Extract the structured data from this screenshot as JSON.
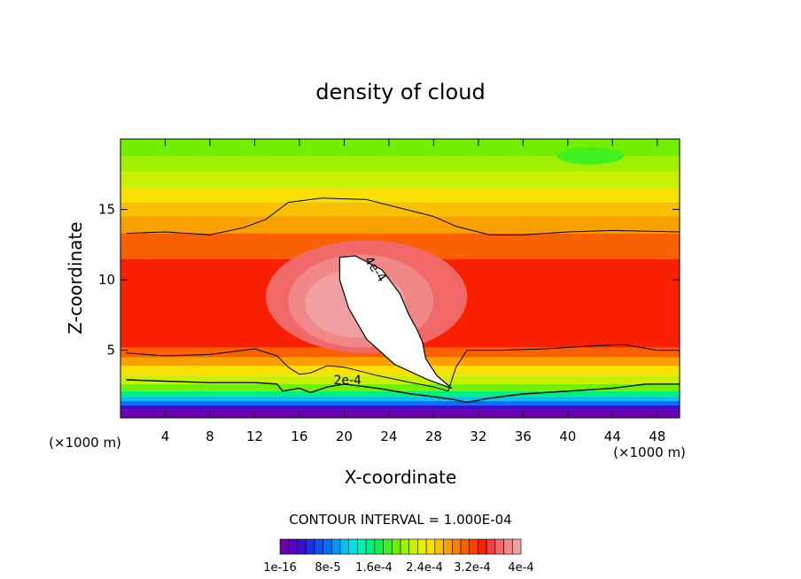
{
  "chart_data": {
    "type": "heatmap",
    "title": "density of cloud",
    "xlabel": "X-coordinate",
    "ylabel": "Z-coordinate",
    "x_unit_left": "(×1000 m)",
    "x_unit_right": "(×1000 m)",
    "xlim": [
      0,
      50
    ],
    "ylim": [
      0.2,
      20
    ],
    "x_ticks": [
      4,
      8,
      12,
      16,
      20,
      24,
      28,
      32,
      36,
      40,
      44,
      48
    ],
    "y_ticks": [
      5,
      10,
      15
    ],
    "contour_interval_label": "CONTOUR INTERVAL = 1.000E-04",
    "contour_labels": [
      {
        "text": "4e-4",
        "x": 22.5,
        "z": 10.6
      },
      {
        "text": "2e-4",
        "x": 20.3,
        "z": 2.6
      }
    ],
    "colorbar": {
      "levels": 28,
      "tick_labels": [
        "1e-16",
        "8e-5",
        "1.6e-4",
        "2.4e-4",
        "3.2e-4",
        "4e-4"
      ],
      "colors": [
        "#6a00b0",
        "#5800c8",
        "#3a10d0",
        "#2030e0",
        "#1050f0",
        "#0070f8",
        "#0098f8",
        "#00c0f0",
        "#00e0e0",
        "#00f0b0",
        "#00f080",
        "#10f050",
        "#40f020",
        "#70f000",
        "#a0f000",
        "#c8f000",
        "#e8f000",
        "#f8e000",
        "#f8c000",
        "#f8a000",
        "#f88000",
        "#f86000",
        "#f84000",
        "#f82000",
        "#f04040",
        "#f06868",
        "#f08888",
        "#f0a0a0"
      ]
    },
    "bands": [
      {
        "z": 0.2,
        "color": "#6a00b0"
      },
      {
        "z": 0.8,
        "color": "#3a10d0"
      },
      {
        "z": 1.1,
        "color": "#0070f8"
      },
      {
        "z": 1.4,
        "color": "#00c0f0"
      },
      {
        "z": 1.7,
        "color": "#00f080"
      },
      {
        "z": 2.1,
        "color": "#70f000"
      },
      {
        "z": 2.6,
        "color": "#c8f000"
      },
      {
        "z": 3.2,
        "color": "#f8e000"
      },
      {
        "z": 3.9,
        "color": "#f8a000"
      },
      {
        "z": 4.5,
        "color": "#f86000"
      },
      {
        "z": 5.2,
        "color": "#f82000"
      },
      {
        "z": 11.5,
        "color": "#f86000"
      },
      {
        "z": 13.3,
        "color": "#f8a000"
      },
      {
        "z": 14.5,
        "color": "#f8c000"
      },
      {
        "z": 15.5,
        "color": "#f8e000"
      },
      {
        "z": 16.5,
        "color": "#c8f000"
      },
      {
        "z": 17.7,
        "color": "#a0f000"
      },
      {
        "z": 18.8,
        "color": "#70f000"
      }
    ],
    "blobs": [
      {
        "cx": 22.0,
        "cz": 8.8,
        "rx": 9.0,
        "rz": 4.0,
        "color": "#f06868"
      },
      {
        "cx": 21.5,
        "cz": 8.5,
        "rx": 6.5,
        "rz": 3.3,
        "color": "#f08888"
      },
      {
        "cx": 21.0,
        "cz": 8.3,
        "rx": 4.5,
        "rz": 2.4,
        "color": "#f0a0a0"
      },
      {
        "cx": 42.0,
        "cz": 18.8,
        "rx": 3.0,
        "rz": 0.6,
        "color": "#40f020"
      }
    ],
    "core_outline": [
      [
        19.6,
        11.6
      ],
      [
        21.0,
        11.7
      ],
      [
        23.4,
        10.7
      ],
      [
        25.0,
        9.0
      ],
      [
        25.8,
        7.5
      ],
      [
        26.5,
        6.5
      ],
      [
        27.0,
        5.6
      ],
      [
        27.3,
        4.4
      ],
      [
        28.3,
        3.2
      ],
      [
        29.6,
        2.3
      ],
      [
        27.5,
        2.9
      ],
      [
        24.5,
        4.0
      ],
      [
        22.0,
        5.8
      ],
      [
        20.4,
        8.0
      ],
      [
        19.6,
        10.0
      ]
    ],
    "core_color": "#ffffff",
    "contour_upper": [
      [
        0.5,
        13.3
      ],
      [
        4.0,
        13.4
      ],
      [
        8.0,
        13.2
      ],
      [
        11.0,
        13.7
      ],
      [
        13.0,
        14.3
      ],
      [
        15.0,
        15.5
      ],
      [
        18.0,
        15.8
      ],
      [
        22.0,
        15.7
      ],
      [
        25.0,
        15.1
      ],
      [
        28.0,
        14.5
      ],
      [
        30.0,
        13.8
      ],
      [
        33.0,
        13.2
      ],
      [
        36.0,
        13.2
      ],
      [
        40.0,
        13.4
      ],
      [
        44.0,
        13.5
      ],
      [
        50.0,
        13.4
      ]
    ],
    "contour_lower": [
      [
        0.5,
        4.8
      ],
      [
        4.0,
        4.6
      ],
      [
        8.0,
        4.7
      ],
      [
        12.0,
        5.1
      ],
      [
        14.0,
        4.6
      ],
      [
        15.0,
        3.8
      ],
      [
        16.0,
        3.3
      ],
      [
        17.0,
        3.4
      ],
      [
        18.5,
        3.9
      ],
      [
        20.0,
        3.8
      ],
      [
        23.0,
        3.2
      ],
      [
        26.0,
        2.7
      ],
      [
        28.0,
        2.4
      ],
      [
        29.3,
        2.1
      ],
      [
        30.0,
        3.8
      ],
      [
        31.0,
        5.0
      ],
      [
        34.0,
        5.0
      ],
      [
        38.0,
        5.1
      ],
      [
        42.0,
        5.3
      ],
      [
        45.0,
        5.4
      ],
      [
        48.0,
        5.0
      ],
      [
        50.0,
        5.0
      ]
    ],
    "contour_2e4": [
      [
        0.5,
        2.9
      ],
      [
        4.0,
        2.8
      ],
      [
        8.0,
        2.7
      ],
      [
        12.0,
        2.7
      ],
      [
        14.0,
        2.6
      ],
      [
        14.5,
        2.1
      ],
      [
        16.0,
        2.3
      ],
      [
        17.0,
        2.0
      ],
      [
        18.5,
        2.4
      ],
      [
        20.0,
        2.6
      ],
      [
        23.0,
        2.3
      ],
      [
        26.0,
        1.9
      ],
      [
        28.0,
        1.7
      ],
      [
        29.8,
        1.5
      ],
      [
        31.0,
        1.3
      ],
      [
        33.0,
        1.6
      ],
      [
        36.0,
        1.9
      ],
      [
        40.0,
        2.1
      ],
      [
        44.0,
        2.3
      ],
      [
        47.0,
        2.6
      ],
      [
        50.0,
        2.6
      ]
    ]
  }
}
